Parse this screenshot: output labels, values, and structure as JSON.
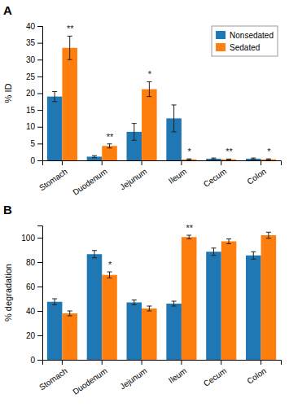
{
  "chart_data": [
    {
      "type": "bar",
      "title": "A",
      "ylabel": "% ID",
      "categories": [
        "Stomach",
        "Duodenum",
        "Jejunum",
        "Ileum",
        "Cecum",
        "Colon"
      ],
      "series": [
        {
          "name": "Nonsedated",
          "values": [
            19.0,
            1.1,
            8.5,
            12.5,
            0.5,
            0.5
          ],
          "errors": [
            1.5,
            0.3,
            2.5,
            4.0,
            0.2,
            0.2
          ]
        },
        {
          "name": "Sedated",
          "values": [
            33.5,
            4.3,
            21.2,
            0.3,
            0.3,
            0.3
          ],
          "errors": [
            3.5,
            0.6,
            2.2,
            0.15,
            0.1,
            0.15
          ],
          "annotations": [
            "**",
            "**",
            "*",
            "*",
            "**",
            "*"
          ]
        }
      ],
      "ylim": [
        0,
        40
      ],
      "yticks": [
        0,
        5,
        10,
        15,
        20,
        25,
        30,
        35,
        40
      ],
      "grid": false,
      "legend": "upper right"
    },
    {
      "type": "bar",
      "title": "B",
      "ylabel": "% degradation",
      "categories": [
        "Stomach",
        "Duodenum",
        "Jejunum",
        "Ileum",
        "Cecum",
        "Colon"
      ],
      "series": [
        {
          "values": [
            47.5,
            86.5,
            47.0,
            46.0,
            88.5,
            85.5
          ],
          "errors": [
            2.5,
            3.0,
            2.0,
            2.0,
            3.0,
            3.0
          ]
        },
        {
          "values": [
            38.0,
            69.5,
            42.0,
            100.5,
            97.0,
            102.0
          ],
          "errors": [
            2.0,
            2.5,
            2.0,
            1.5,
            2.0,
            2.5
          ],
          "annotations": [
            null,
            "*",
            null,
            "**",
            null,
            null
          ]
        }
      ],
      "ylim": [
        0,
        110
      ],
      "yticks": [
        0,
        20,
        40,
        60,
        80,
        100
      ],
      "grid": false
    }
  ]
}
